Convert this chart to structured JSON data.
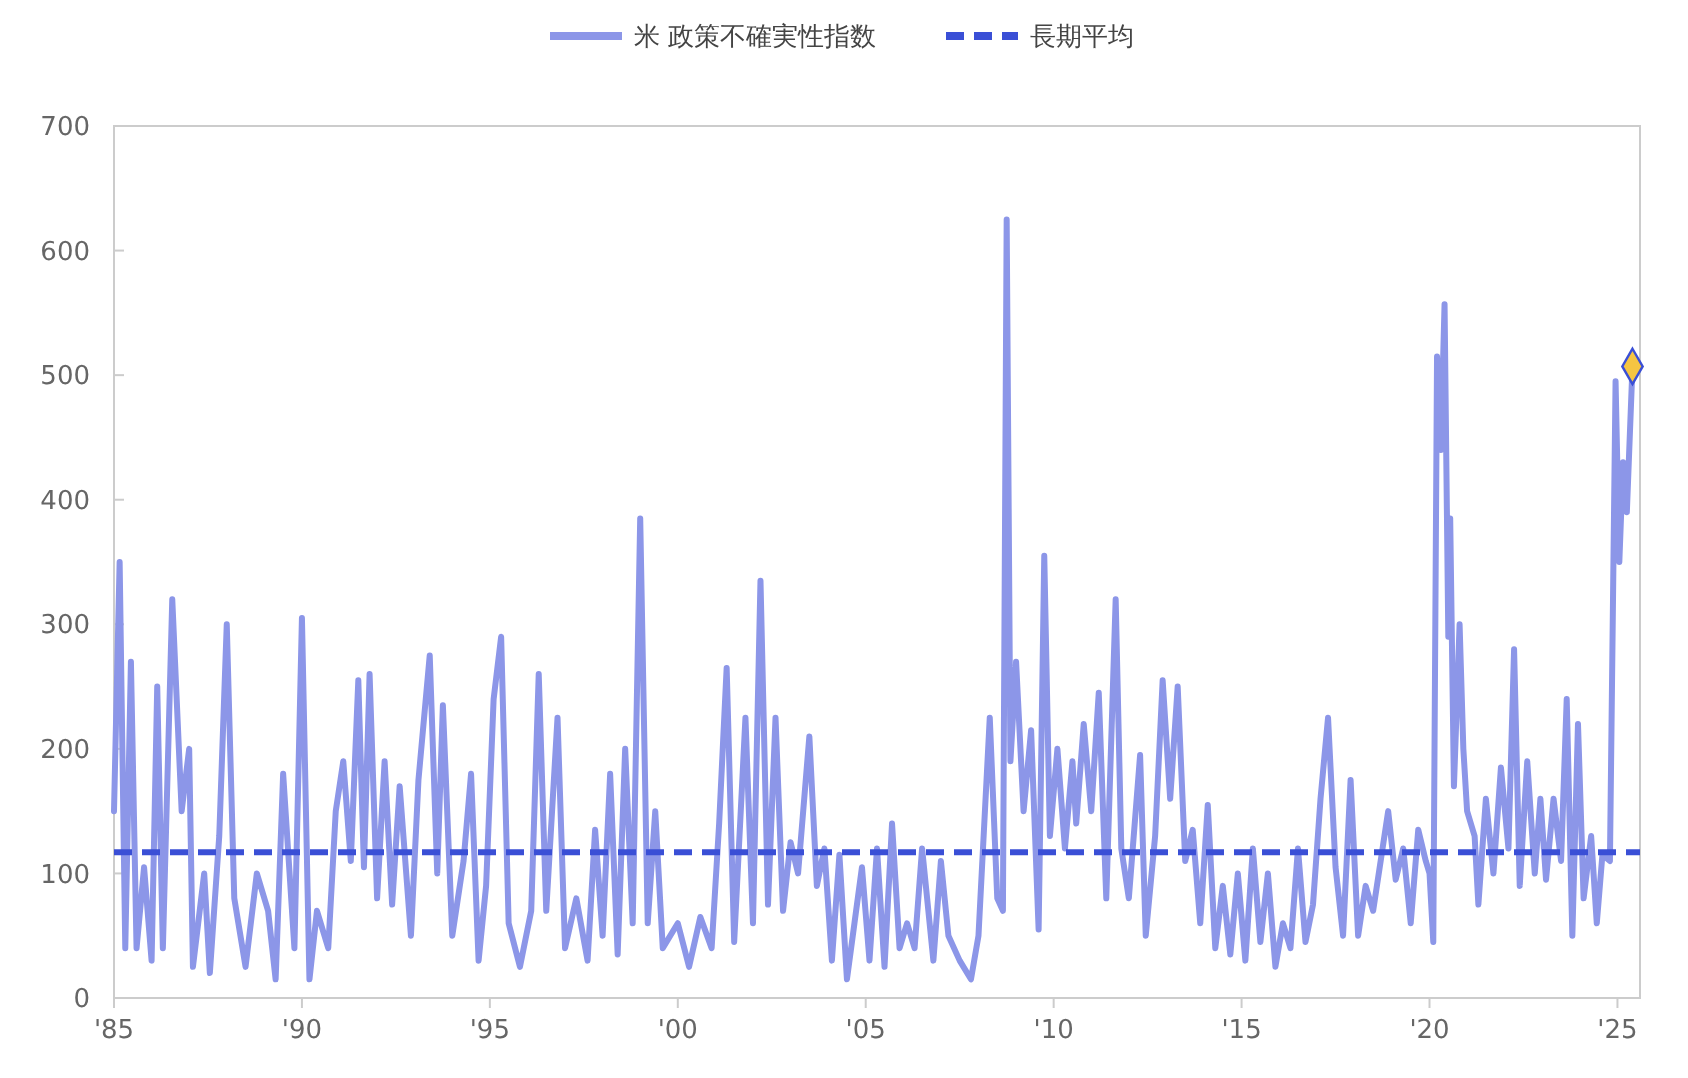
{
  "chart_data": {
    "type": "line",
    "legend": "top",
    "grid": false,
    "xlim": [
      1985,
      2025.6
    ],
    "xticks": [
      {
        "value": 1985,
        "label": "'85"
      },
      {
        "value": 1990,
        "label": "'90"
      },
      {
        "value": 1995,
        "label": "'95"
      },
      {
        "value": 2000,
        "label": "'00"
      },
      {
        "value": 2005,
        "label": "'05"
      },
      {
        "value": 2010,
        "label": "'10"
      },
      {
        "value": 2015,
        "label": "'15"
      },
      {
        "value": 2020,
        "label": "'20"
      },
      {
        "value": 2025,
        "label": "'25"
      }
    ],
    "ylim": [
      0,
      700
    ],
    "yticks": [
      0,
      100,
      200,
      300,
      400,
      500,
      600,
      700
    ],
    "ref_lines": [
      {
        "axis": "y",
        "value": 117,
        "label": "長期平均",
        "color": "#3a4fd6",
        "line_style": "dashed"
      }
    ],
    "series": [
      {
        "name": "米 政策不確実性指数",
        "color": "#8c96e8",
        "marker": "none",
        "x": [
          1985,
          1985.15,
          1985.3,
          1985.45,
          1985.6,
          1985.8,
          1986,
          1986.15,
          1986.3,
          1986.55,
          1986.8,
          1987,
          1987.1,
          1987.4,
          1987.55,
          1987.8,
          1988,
          1988.2,
          1988.5,
          1988.8,
          1989.1,
          1989.3,
          1989.5,
          1989.8,
          1990,
          1990.2,
          1990.4,
          1990.7,
          1990.9,
          1991.1,
          1991.3,
          1991.5,
          1991.65,
          1991.8,
          1992,
          1992.2,
          1992.4,
          1992.6,
          1992.9,
          1993.1,
          1993.4,
          1993.6,
          1993.75,
          1994,
          1994.3,
          1994.5,
          1994.7,
          1994.9,
          1995.1,
          1995.3,
          1995.5,
          1995.8,
          1996.1,
          1996.3,
          1996.5,
          1996.8,
          1997,
          1997.3,
          1997.6,
          1997.8,
          1998,
          1998.2,
          1998.4,
          1998.6,
          1998.8,
          1999,
          1999.2,
          1999.4,
          1999.6,
          2000,
          2000.3,
          2000.6,
          2000.9,
          2001.1,
          2001.3,
          2001.5,
          2001.8,
          2002,
          2002.2,
          2002.4,
          2002.6,
          2002.8,
          2003,
          2003.2,
          2003.5,
          2003.7,
          2003.9,
          2004.1,
          2004.3,
          2004.5,
          2004.7,
          2004.9,
          2005.1,
          2005.3,
          2005.5,
          2005.7,
          2005.9,
          2006.1,
          2006.3,
          2006.5,
          2006.8,
          2007,
          2007.2,
          2007.5,
          2007.8,
          2008,
          2008.3,
          2008.5,
          2008.65,
          2008.75,
          2008.85,
          2009,
          2009.2,
          2009.4,
          2009.6,
          2009.75,
          2009.9,
          2010.1,
          2010.3,
          2010.5,
          2010.6,
          2010.8,
          2011,
          2011.2,
          2011.4,
          2011.65,
          2011.8,
          2012,
          2012.3,
          2012.45,
          2012.7,
          2012.9,
          2013.1,
          2013.3,
          2013.5,
          2013.7,
          2013.9,
          2014.1,
          2014.3,
          2014.5,
          2014.7,
          2014.9,
          2015.1,
          2015.3,
          2015.5,
          2015.7,
          2015.9,
          2016.1,
          2016.3,
          2016.5,
          2016.7,
          2016.9,
          2017.1,
          2017.3,
          2017.5,
          2017.7,
          2017.9,
          2018.1,
          2018.3,
          2018.5,
          2018.7,
          2018.9,
          2019.1,
          2019.3,
          2019.5,
          2019.7,
          2019.9,
          2020,
          2020.1,
          2020.2,
          2020.3,
          2020.4,
          2020.5,
          2020.55,
          2020.65,
          2020.8,
          2020.9,
          2021,
          2021.2,
          2021.3,
          2021.5,
          2021.7,
          2021.9,
          2022.1,
          2022.25,
          2022.4,
          2022.6,
          2022.8,
          2022.95,
          2023.1,
          2023.3,
          2023.5,
          2023.65,
          2023.8,
          2023.95,
          2024.1,
          2024.3,
          2024.45,
          2024.6,
          2024.8,
          2024.95,
          2025.05,
          2025.15,
          2025.25,
          2025.4
        ],
        "values": [
          150,
          350,
          40,
          270,
          40,
          105,
          30,
          250,
          40,
          320,
          150,
          200,
          25,
          100,
          20,
          130,
          300,
          80,
          25,
          100,
          70,
          15,
          180,
          40,
          305,
          15,
          70,
          40,
          150,
          190,
          110,
          255,
          105,
          260,
          80,
          190,
          75,
          170,
          50,
          175,
          275,
          100,
          235,
          50,
          110,
          180,
          30,
          90,
          240,
          290,
          60,
          25,
          70,
          260,
          70,
          225,
          40,
          80,
          30,
          135,
          50,
          180,
          35,
          200,
          60,
          385,
          60,
          150,
          40,
          60,
          25,
          65,
          40,
          140,
          265,
          45,
          225,
          60,
          335,
          75,
          225,
          70,
          125,
          100,
          210,
          90,
          120,
          30,
          115,
          15,
          60,
          105,
          30,
          120,
          25,
          140,
          40,
          60,
          40,
          120,
          30,
          110,
          50,
          30,
          15,
          50,
          225,
          80,
          70,
          625,
          190,
          270,
          150,
          215,
          55,
          355,
          130,
          200,
          120,
          190,
          140,
          220,
          150,
          245,
          80,
          320,
          120,
          80,
          195,
          50,
          130,
          255,
          160,
          250,
          110,
          135,
          60,
          155,
          40,
          90,
          35,
          100,
          30,
          120,
          45,
          100,
          25,
          60,
          40,
          120,
          45,
          75,
          160,
          225,
          105,
          50,
          175,
          50,
          90,
          70,
          110,
          150,
          95,
          120,
          60,
          135,
          110,
          100,
          45,
          515,
          440,
          557,
          290,
          385,
          170,
          300,
          200,
          150,
          130,
          75,
          160,
          100,
          185,
          120,
          280,
          90,
          190,
          100,
          160,
          95,
          160,
          110,
          240,
          50,
          220,
          80,
          130,
          60,
          115,
          110,
          495,
          350,
          430,
          390,
          507
        ]
      },
      {
        "type": "scatter",
        "color": "#f5c542",
        "marker": "diamond",
        "x": [
          2025.4
        ],
        "values": [
          507
        ]
      }
    ]
  }
}
